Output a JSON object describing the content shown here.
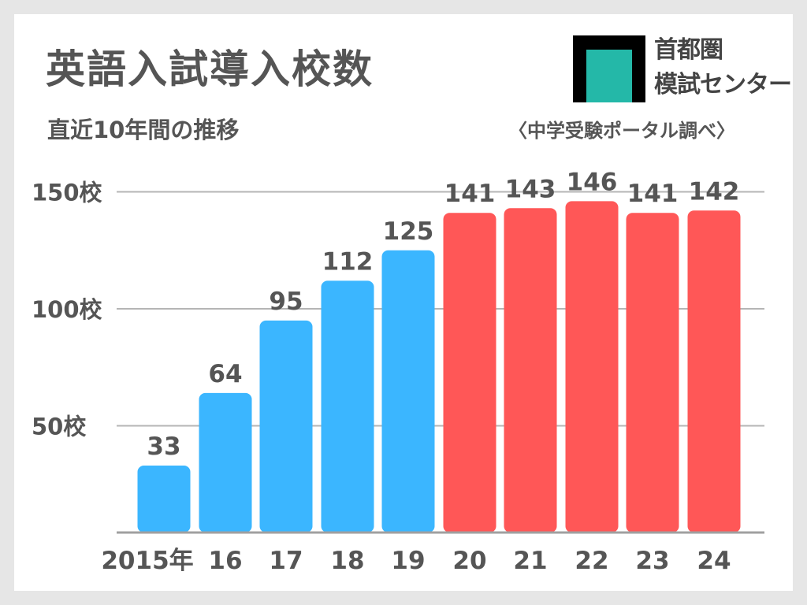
{
  "title": "英語入試導入校数",
  "subtitle": "直近10年間の推移",
  "logo": {
    "line1": "首都圏",
    "line2": "模試センター",
    "colors": {
      "frame": "#000000",
      "inner": "#24b8a8"
    }
  },
  "source": "〈中学受験ポータル調べ〉",
  "chart_data": {
    "type": "bar",
    "categories": [
      "2015年",
      "16",
      "17",
      "18",
      "19",
      "20",
      "21",
      "22",
      "23",
      "24"
    ],
    "values": [
      33,
      64,
      95,
      112,
      125,
      141,
      143,
      146,
      141,
      142
    ],
    "bar_colors": [
      "#3bb6ff",
      "#3bb6ff",
      "#3bb6ff",
      "#3bb6ff",
      "#3bb6ff",
      "#ff5757",
      "#ff5757",
      "#ff5757",
      "#ff5757",
      "#ff5757"
    ],
    "yticks": [
      50,
      100,
      150
    ],
    "ytick_labels": [
      "50校",
      "100校",
      "150校"
    ],
    "ylim": [
      0,
      150
    ],
    "grid": true,
    "xlabel": "",
    "ylabel": ""
  }
}
